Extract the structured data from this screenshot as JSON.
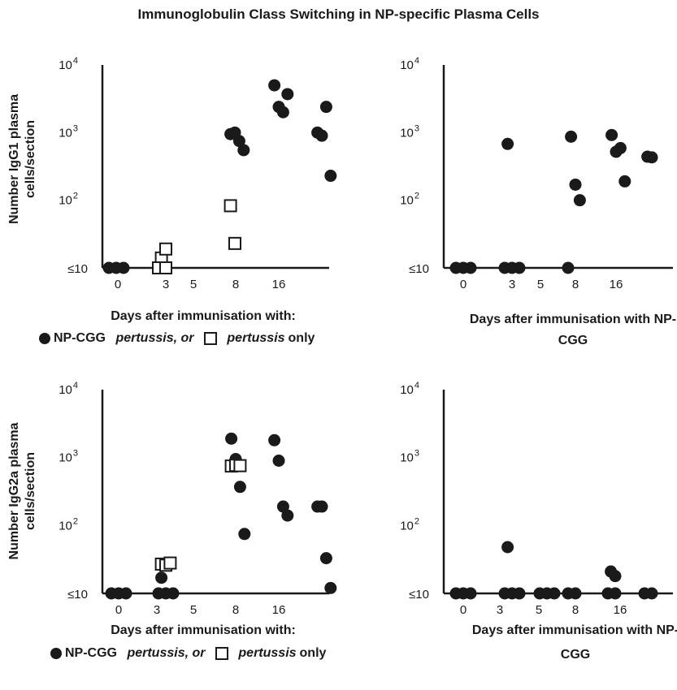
{
  "title": "Immunoglobulin Class Switching in NP-specific Plasma Cells",
  "legend": {
    "series1": "NP-CGG",
    "italic1": "pertussis, or",
    "italic2": "pertussis",
    "tail": "only"
  },
  "chart_data": [
    {
      "type": "scatter",
      "panel": "top-left",
      "ylabel": [
        "Number IgG1 plasma",
        "cells/section"
      ],
      "xlabel": "Days after immunisation with:",
      "yscale": "log",
      "ylim": [
        10,
        10000
      ],
      "y_ticks": [
        "≤10",
        "10²",
        "10³",
        "10⁴"
      ],
      "x_ticks": [
        "0",
        "3",
        "5",
        "8",
        "16"
      ],
      "series": [
        {
          "name": "NP-CGG pertussis",
          "marker": "filled-circle",
          "points": [
            {
              "x": "0",
              "y": 10
            },
            {
              "x": "0",
              "y": 10
            },
            {
              "x": "0",
              "y": 10
            },
            {
              "x": "3",
              "y": 10
            },
            {
              "x": "3",
              "y": 10
            },
            {
              "x": "8",
              "y": 950
            },
            {
              "x": "8",
              "y": 1000
            },
            {
              "x": "8",
              "y": 750
            },
            {
              "x": "8",
              "y": 550
            },
            {
              "x": "16",
              "y": 5000
            },
            {
              "x": "16",
              "y": 2400
            },
            {
              "x": "16",
              "y": 2000
            },
            {
              "x": "16",
              "y": 3700
            },
            {
              "x": ">16",
              "y": 1000
            },
            {
              "x": ">16",
              "y": 900
            },
            {
              "x": ">16",
              "y": 2400
            },
            {
              "x": ">16",
              "y": 230
            }
          ]
        },
        {
          "name": "pertussis only",
          "marker": "open-square",
          "points": [
            {
              "x": "3",
              "y": 14
            },
            {
              "x": "3",
              "y": 19
            },
            {
              "x": "3",
              "y": 10
            },
            {
              "x": "3",
              "y": 10
            },
            {
              "x": "8",
              "y": 83
            },
            {
              "x": "8",
              "y": 23
            }
          ]
        }
      ]
    },
    {
      "type": "scatter",
      "panel": "top-right",
      "xlabel": "Days after immunisation with NP-CGG",
      "yscale": "log",
      "ylim": [
        10,
        10000
      ],
      "y_ticks": [
        "≤10",
        "10²",
        "10³",
        "10⁴"
      ],
      "x_ticks": [
        "0",
        "3",
        "5",
        "8",
        "16"
      ],
      "series": [
        {
          "name": "NP-CGG",
          "marker": "filled-circle",
          "points": [
            {
              "x": "0",
              "y": 10
            },
            {
              "x": "0",
              "y": 10
            },
            {
              "x": "0",
              "y": 10
            },
            {
              "x": "3",
              "y": 10
            },
            {
              "x": "3",
              "y": 680
            },
            {
              "x": "3",
              "y": 10
            },
            {
              "x": "3",
              "y": 10
            },
            {
              "x": "8",
              "y": 870
            },
            {
              "x": "8",
              "y": 170
            },
            {
              "x": "8",
              "y": 100
            },
            {
              "x": "8",
              "y": 10
            },
            {
              "x": "16",
              "y": 920
            },
            {
              "x": "16",
              "y": 520
            },
            {
              "x": "16",
              "y": 590
            },
            {
              "x": "16",
              "y": 190
            },
            {
              "x": ">16",
              "y": 440
            },
            {
              "x": ">16",
              "y": 430
            }
          ]
        }
      ]
    },
    {
      "type": "scatter",
      "panel": "bottom-left",
      "ylabel": [
        "Number IgG2a plasma",
        "cells/section"
      ],
      "xlabel": "Days after immunisation with:",
      "yscale": "log",
      "ylim": [
        10,
        10000
      ],
      "y_ticks": [
        "≤10",
        "10²",
        "10³",
        "10⁴"
      ],
      "x_ticks": [
        "0",
        "3",
        "5",
        "8",
        "16"
      ],
      "series": [
        {
          "name": "NP-CGG pertussis",
          "marker": "filled-circle",
          "points": [
            {
              "x": "0",
              "y": 10
            },
            {
              "x": "0",
              "y": 10
            },
            {
              "x": "0",
              "y": 10
            },
            {
              "x": "3",
              "y": 10
            },
            {
              "x": "3",
              "y": 17
            },
            {
              "x": "3",
              "y": 10
            },
            {
              "x": "3",
              "y": 10
            },
            {
              "x": "8",
              "y": 1900
            },
            {
              "x": "8",
              "y": 950
            },
            {
              "x": "8",
              "y": 370
            },
            {
              "x": "8",
              "y": 75
            },
            {
              "x": "16",
              "y": 1800
            },
            {
              "x": "16",
              "y": 900
            },
            {
              "x": "16",
              "y": 190
            },
            {
              "x": "16",
              "y": 140
            },
            {
              "x": ">16",
              "y": 190
            },
            {
              "x": ">16",
              "y": 190
            },
            {
              "x": ">16",
              "y": 33
            },
            {
              "x": ">16",
              "y": 12
            }
          ]
        },
        {
          "name": "pertussis only",
          "marker": "open-square",
          "points": [
            {
              "x": "3",
              "y": 27
            },
            {
              "x": "3",
              "y": 26
            },
            {
              "x": "3",
              "y": 28
            },
            {
              "x": "8",
              "y": 750
            },
            {
              "x": "8",
              "y": 770
            },
            {
              "x": "8",
              "y": 760
            }
          ]
        }
      ]
    },
    {
      "type": "scatter",
      "panel": "bottom-right",
      "xlabel": "Days after immunisation with NP-CGG",
      "yscale": "log",
      "ylim": [
        10,
        10000
      ],
      "y_ticks": [
        "≤10",
        "10²",
        "10³",
        "10⁴"
      ],
      "x_ticks": [
        "0",
        "3",
        "5",
        "8",
        "16"
      ],
      "series": [
        {
          "name": "NP-CGG",
          "marker": "filled-circle",
          "points": [
            {
              "x": "0",
              "y": 10
            },
            {
              "x": "0",
              "y": 10
            },
            {
              "x": "0",
              "y": 10
            },
            {
              "x": "3",
              "y": 10
            },
            {
              "x": "3",
              "y": 48
            },
            {
              "x": "3",
              "y": 10
            },
            {
              "x": "3",
              "y": 10
            },
            {
              "x": "5",
              "y": 10
            },
            {
              "x": "5",
              "y": 10
            },
            {
              "x": "5",
              "y": 10
            },
            {
              "x": "8",
              "y": 10
            },
            {
              "x": "8",
              "y": 10
            },
            {
              "x": "16",
              "y": 21
            },
            {
              "x": "16",
              "y": 18
            },
            {
              "x": "16",
              "y": 10
            },
            {
              "x": "16",
              "y": 10
            },
            {
              "x": ">16",
              "y": 10
            },
            {
              "x": ">16",
              "y": 10
            }
          ]
        }
      ]
    }
  ]
}
